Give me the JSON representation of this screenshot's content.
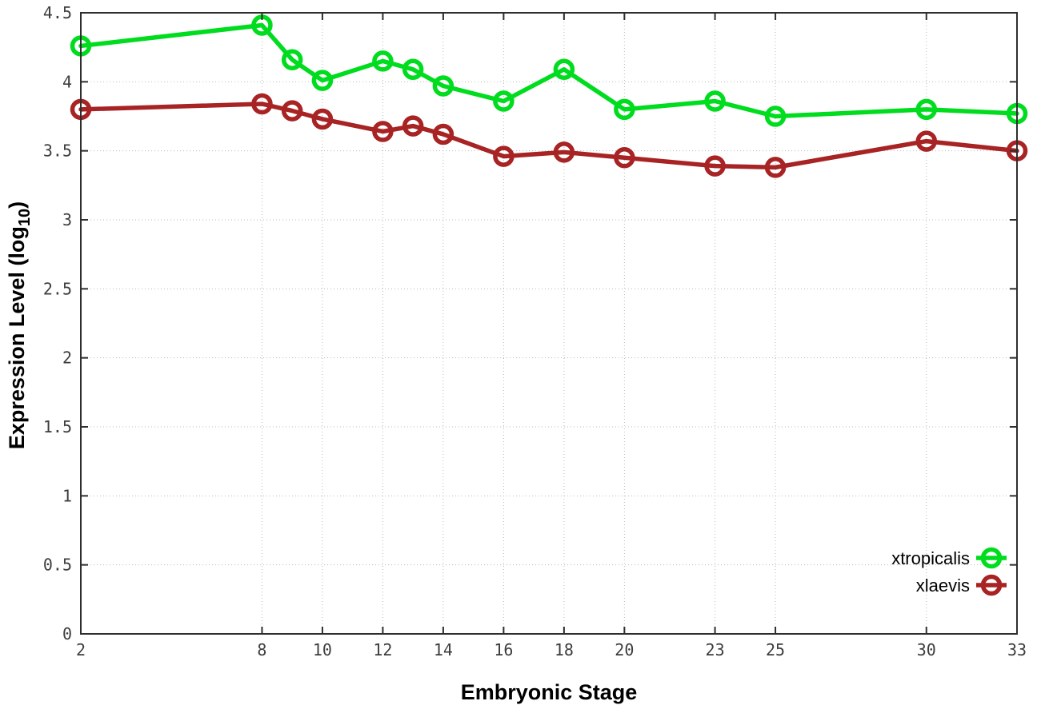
{
  "chart_data": {
    "type": "line",
    "title": "",
    "xlabel": "Embryonic Stage",
    "ylabel_main": "Expression Level (log",
    "ylabel_sub": "10",
    "ylabel_end": ")",
    "xlim": [
      2,
      33
    ],
    "ylim": [
      0,
      4.5
    ],
    "xticks": [
      2,
      8,
      10,
      12,
      14,
      16,
      18,
      20,
      23,
      25,
      30,
      33
    ],
    "xtick_labels": [
      "2",
      "8",
      "10",
      "12",
      "14",
      "16",
      "18",
      "20",
      "23",
      "25",
      "30",
      "33"
    ],
    "yticks": [
      0,
      0.5,
      1,
      1.5,
      2,
      2.5,
      3,
      3.5,
      4,
      4.5
    ],
    "ytick_labels": [
      "0",
      "0.5",
      "1",
      "1.5",
      "2",
      "2.5",
      "3",
      "3.5",
      "4",
      "4.5"
    ],
    "grid": true,
    "legend_position": "right-center",
    "x": [
      2,
      8,
      9,
      10,
      12,
      13,
      14,
      16,
      18,
      20,
      23,
      25,
      30,
      33
    ],
    "series": [
      {
        "name": "xtropicalis",
        "color": "#00DC1E",
        "marker": "open-circle",
        "values": [
          4.26,
          4.41,
          4.16,
          4.01,
          4.15,
          4.09,
          3.97,
          3.86,
          4.09,
          3.8,
          3.86,
          3.75,
          3.8,
          3.77
        ]
      },
      {
        "name": "xlaevis",
        "color": "#A82323",
        "marker": "open-circle",
        "values": [
          3.8,
          3.84,
          3.79,
          3.73,
          3.64,
          3.68,
          3.62,
          3.46,
          3.49,
          3.45,
          3.39,
          3.38,
          3.57,
          3.5
        ]
      }
    ],
    "colors": {
      "border": "#2e2e2e",
      "grid": "#bbbbbb",
      "tick_text": "#3d3d3d",
      "background": "#ffffff"
    }
  }
}
